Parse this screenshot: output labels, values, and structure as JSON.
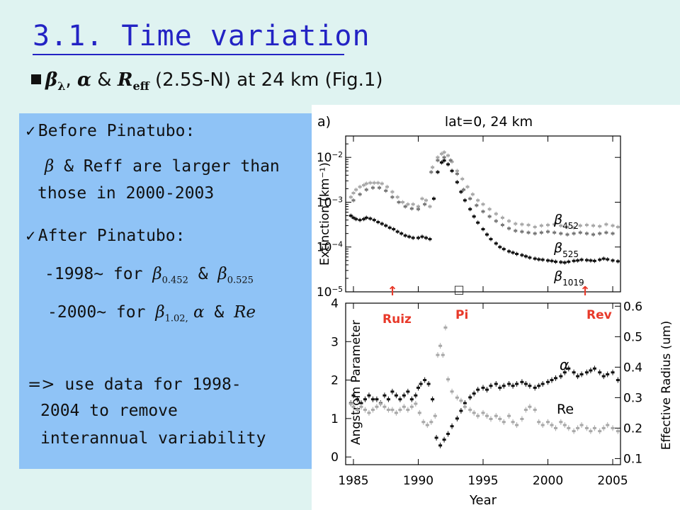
{
  "slide": {
    "title": "3.1. Time variation",
    "subtitle": {
      "beta": "β",
      "lambda": "λ",
      "sep1": ", ",
      "alpha": "α",
      "amp": " & ",
      "reff": "R",
      "reff_sub": "eff",
      "rest": " (2.5S-N) at 24 km  (Fig.1)"
    },
    "panel": {
      "item1_heading": "Before Pinatubo:",
      "item1_beta": "β",
      "item1_line1": " & Reff are larger than",
      "item1_line2": "those in 2000-2003",
      "item2_heading": "After Pinatubo:",
      "item2_line1_a": "-1998~ for ",
      "item2_line1_beta1": "β",
      "item2_line1_sub1": "0.452",
      "item2_line1_amp": " & ",
      "item2_line1_beta2": "β",
      "item2_line1_sub2": "0.525",
      "item2_line2_a": "-2000~ for ",
      "item2_line2_beta": "β",
      "item2_line2_sub": "1.02,",
      "item2_line2_alpha": " α",
      "item2_line2_amp": " & ",
      "item2_line2_re": "Re",
      "item3_arrow": "=>",
      "item3_line1": " use data for 1998-",
      "item3_line2": "2004 to remove",
      "item3_line3": "interannual variability"
    },
    "annotations": {
      "ruiz": "Ruiz",
      "pi": "Pi",
      "rev": "Rev",
      "box": "□"
    }
  },
  "chart_data": [
    {
      "type": "scatter",
      "panel_label": "a)",
      "title": "lat=0, 24 km",
      "ylabel": "Extinction (km⁻¹)",
      "yscale": "log",
      "ylim": [
        1e-05,
        0.03
      ],
      "xlim": [
        1984.4,
        2005.6
      ],
      "yticks": [
        1e-05,
        0.0001,
        0.001,
        0.01
      ],
      "ytick_labels": [
        [
          "10",
          "−5"
        ],
        [
          "10",
          "−4"
        ],
        [
          "10",
          "−3"
        ],
        [
          "10",
          "−2"
        ]
      ],
      "series": [
        {
          "name": "β452",
          "base": "β",
          "sub": "452",
          "color": "#a8a8a8",
          "x": [
            1984.8,
            1985.0,
            1985.2,
            1985.5,
            1985.8,
            1986.0,
            1986.3,
            1986.6,
            1986.9,
            1987.2,
            1987.6,
            1988.0,
            1988.4,
            1988.8,
            1989.2,
            1989.6,
            1990.0,
            1990.3,
            1990.6,
            1990.9,
            1991.1,
            1991.5,
            1991.8,
            1992.0,
            1992.3,
            1992.6,
            1993.0,
            1993.4,
            1993.8,
            1994.2,
            1994.6,
            1995.0,
            1995.5,
            1996.0,
            1996.5,
            1997.0,
            1997.5,
            1998.0,
            1998.5,
            1999.0,
            1999.5,
            2000.0,
            2000.5,
            2001.0,
            2001.5,
            2002.0,
            2002.5,
            2003.0,
            2003.5,
            2004.0,
            2004.5,
            2005.0,
            2005.4
          ],
          "y": [
            0.0013,
            0.0016,
            0.0019,
            0.0022,
            0.0024,
            0.0026,
            0.0027,
            0.0027,
            0.0027,
            0.0026,
            0.0022,
            0.0017,
            0.0013,
            0.001,
            0.0009,
            0.0009,
            0.0008,
            0.0012,
            0.0011,
            0.0008,
            0.006,
            0.01,
            0.012,
            0.013,
            0.011,
            0.008,
            0.005,
            0.0033,
            0.0022,
            0.0015,
            0.0011,
            0.0009,
            0.0007,
            0.00055,
            0.00045,
            0.00038,
            0.00033,
            0.00032,
            0.00031,
            0.00028,
            0.0003,
            0.00031,
            0.00032,
            0.0003,
            0.00028,
            0.00027,
            0.0003,
            0.00031,
            0.0003,
            0.00029,
            0.00032,
            0.0003,
            0.00028
          ]
        },
        {
          "name": "β525",
          "base": "β",
          "sub": "525",
          "color": "#777777",
          "x": [
            1985.0,
            1985.5,
            1986.0,
            1986.5,
            1987.0,
            1987.5,
            1988.0,
            1988.5,
            1989.0,
            1989.5,
            1990.0,
            1990.5,
            1991.0,
            1991.5,
            1992.0,
            1992.5,
            1993.0,
            1993.5,
            1994.0,
            1994.5,
            1995.0,
            1995.5,
            1996.0,
            1996.5,
            1997.0,
            1997.5,
            1998.0,
            1998.5,
            1999.0,
            1999.5,
            2000.0,
            2000.5,
            2001.0,
            2001.5,
            2002.0,
            2002.5,
            2003.0,
            2003.5,
            2004.0,
            2004.5,
            2005.0
          ],
          "y": [
            0.0011,
            0.0015,
            0.0019,
            0.0021,
            0.0021,
            0.0018,
            0.0013,
            0.001,
            0.0008,
            0.00072,
            0.0007,
            0.0009,
            0.0047,
            0.0086,
            0.01,
            0.0086,
            0.0043,
            0.0019,
            0.0012,
            0.00085,
            0.00062,
            0.00048,
            0.00038,
            0.00031,
            0.00026,
            0.00023,
            0.00022,
            0.00021,
            0.0002,
            0.00021,
            0.00022,
            0.00021,
            0.0002,
            0.00019,
            0.0002,
            0.00021,
            0.0002,
            0.00019,
            0.0002,
            0.00021,
            0.0002
          ]
        },
        {
          "name": "β1019",
          "base": "β",
          "sub": "1019",
          "color": "#111111",
          "x": [
            1984.8,
            1985.0,
            1985.2,
            1985.5,
            1985.8,
            1986.0,
            1986.3,
            1986.6,
            1986.9,
            1987.2,
            1987.5,
            1987.8,
            1988.1,
            1988.4,
            1988.7,
            1989.0,
            1989.3,
            1989.6,
            1990.0,
            1990.3,
            1990.6,
            1990.9,
            1991.2,
            1991.5,
            1991.8,
            1992.0,
            1992.3,
            1992.6,
            1993.0,
            1993.3,
            1993.6,
            1994.0,
            1994.3,
            1994.6,
            1995.0,
            1995.3,
            1995.6,
            1996.0,
            1996.3,
            1996.6,
            1997.0,
            1997.3,
            1997.6,
            1998.0,
            1998.3,
            1998.6,
            1999.0,
            1999.3,
            1999.6,
            2000.0,
            2000.3,
            2000.6,
            2001.0,
            2001.3,
            2001.6,
            2002.0,
            2002.3,
            2002.6,
            2003.0,
            2003.3,
            2003.6,
            2004.0,
            2004.3,
            2004.6,
            2005.0,
            2005.4
          ],
          "y": [
            0.0005,
            0.00045,
            0.00042,
            0.0004,
            0.00042,
            0.00045,
            0.00043,
            0.0004,
            0.00036,
            0.00033,
            0.0003,
            0.00027,
            0.00025,
            0.00022,
            0.0002,
            0.00018,
            0.00017,
            0.00016,
            0.00016,
            0.00017,
            0.00016,
            0.00015,
            0.0012,
            0.0047,
            0.0077,
            0.0085,
            0.007,
            0.005,
            0.0028,
            0.0017,
            0.0011,
            0.0007,
            0.00048,
            0.00035,
            0.00025,
            0.00019,
            0.00015,
            0.00012,
            0.0001,
            9e-05,
            8e-05,
            7.5e-05,
            7e-05,
            6.6e-05,
            6.2e-05,
            5.8e-05,
            5.5e-05,
            5.3e-05,
            5.2e-05,
            5e-05,
            4.9e-05,
            4.7e-05,
            4.6e-05,
            4.5e-05,
            4.7e-05,
            4.9e-05,
            5e-05,
            5.2e-05,
            5.1e-05,
            5e-05,
            4.9e-05,
            5.2e-05,
            5.5e-05,
            5.3e-05,
            5e-05,
            4.8e-05
          ]
        }
      ]
    },
    {
      "type": "scatter",
      "xlabel": "Year",
      "ylabel": "Angstrom Parameter",
      "ylabel_right": "Effective Radius (um)",
      "xlim": [
        1984.4,
        2005.6
      ],
      "ylim": [
        -0.2,
        4.0
      ],
      "ylim_right": [
        0.08,
        0.61
      ],
      "xticks": [
        1985,
        1990,
        1995,
        2000,
        2005
      ],
      "xtick_labels": [
        "1985",
        "1990",
        "1995",
        "2000",
        "2005"
      ],
      "yticks": [
        0,
        1,
        2,
        3,
        4
      ],
      "ytick_labels": [
        "0",
        "1",
        "2",
        "3",
        "4"
      ],
      "yticks_right": [
        0.1,
        0.2,
        0.3,
        0.4,
        0.5,
        0.6
      ],
      "ytick_labels_right": [
        "0.1",
        "0.2",
        "0.3",
        "0.4",
        "0.5",
        "0.6"
      ],
      "series": [
        {
          "name": "α",
          "axis": "left",
          "color": "#111111",
          "x": [
            1984.8,
            1985.0,
            1985.3,
            1985.6,
            1985.9,
            1986.2,
            1986.5,
            1986.8,
            1987.1,
            1987.4,
            1987.7,
            1988.0,
            1988.3,
            1988.6,
            1988.9,
            1989.2,
            1989.5,
            1989.8,
            1990.0,
            1990.2,
            1990.5,
            1990.8,
            1991.1,
            1991.4,
            1991.7,
            1992.0,
            1992.3,
            1992.6,
            1993.0,
            1993.3,
            1993.6,
            1994.0,
            1994.3,
            1994.6,
            1995.0,
            1995.3,
            1995.6,
            1996.0,
            1996.3,
            1996.6,
            1997.0,
            1997.3,
            1997.6,
            1998.0,
            1998.3,
            1998.6,
            1999.0,
            1999.3,
            1999.6,
            2000.0,
            2000.3,
            2000.6,
            2001.0,
            2001.3,
            2001.6,
            2002.0,
            2002.3,
            2002.6,
            2003.0,
            2003.3,
            2003.6,
            2004.0,
            2004.3,
            2004.6,
            2005.0,
            2005.4
          ],
          "y": [
            1.4,
            1.6,
            1.5,
            1.4,
            1.5,
            1.6,
            1.5,
            1.5,
            1.4,
            1.6,
            1.5,
            1.7,
            1.6,
            1.5,
            1.6,
            1.7,
            1.5,
            1.6,
            1.8,
            1.9,
            2.0,
            1.9,
            1.5,
            0.5,
            0.3,
            0.45,
            0.6,
            0.8,
            1.0,
            1.2,
            1.4,
            1.55,
            1.65,
            1.75,
            1.8,
            1.75,
            1.85,
            1.9,
            1.8,
            1.85,
            1.9,
            1.85,
            1.9,
            1.95,
            1.9,
            1.85,
            1.8,
            1.85,
            1.9,
            1.95,
            2.0,
            2.05,
            2.1,
            2.2,
            2.3,
            2.2,
            2.1,
            2.15,
            2.2,
            2.25,
            2.3,
            2.2,
            2.1,
            2.15,
            2.2,
            2.0
          ]
        },
        {
          "name": "Re",
          "axis": "right",
          "color": "#a8a8a8",
          "x": [
            1984.8,
            1985.0,
            1985.3,
            1985.6,
            1985.9,
            1986.2,
            1986.5,
            1986.8,
            1987.1,
            1987.4,
            1987.7,
            1988.0,
            1988.3,
            1988.6,
            1988.9,
            1989.2,
            1989.5,
            1989.8,
            1990.1,
            1990.4,
            1990.7,
            1991.0,
            1991.3,
            1991.5,
            1991.7,
            1991.9,
            1992.1,
            1992.3,
            1992.6,
            1993.0,
            1993.3,
            1993.6,
            1994.0,
            1994.3,
            1994.6,
            1995.0,
            1995.3,
            1995.6,
            1996.0,
            1996.3,
            1996.6,
            1997.0,
            1997.3,
            1997.6,
            1998.0,
            1998.3,
            1998.6,
            1999.0,
            1999.3,
            1999.6,
            2000.0,
            2000.3,
            2000.6,
            2001.0,
            2001.3,
            2001.6,
            2002.0,
            2002.3,
            2002.6,
            2003.0,
            2003.3,
            2003.6,
            2004.0,
            2004.3,
            2004.6,
            2005.0,
            2005.4
          ],
          "y": [
            0.28,
            0.27,
            0.26,
            0.27,
            0.26,
            0.25,
            0.26,
            0.27,
            0.28,
            0.27,
            0.26,
            0.26,
            0.25,
            0.26,
            0.27,
            0.26,
            0.27,
            0.28,
            0.25,
            0.22,
            0.21,
            0.22,
            0.24,
            0.44,
            0.47,
            0.44,
            0.53,
            0.36,
            0.32,
            0.3,
            0.29,
            0.27,
            0.26,
            0.25,
            0.24,
            0.25,
            0.24,
            0.23,
            0.24,
            0.23,
            0.22,
            0.24,
            0.22,
            0.21,
            0.23,
            0.26,
            0.27,
            0.26,
            0.22,
            0.21,
            0.22,
            0.21,
            0.2,
            0.22,
            0.21,
            0.2,
            0.19,
            0.2,
            0.21,
            0.2,
            0.19,
            0.2,
            0.19,
            0.2,
            0.21,
            0.2,
            0.19
          ]
        }
      ],
      "labels": {
        "alpha": "α",
        "re": "Re"
      }
    }
  ]
}
